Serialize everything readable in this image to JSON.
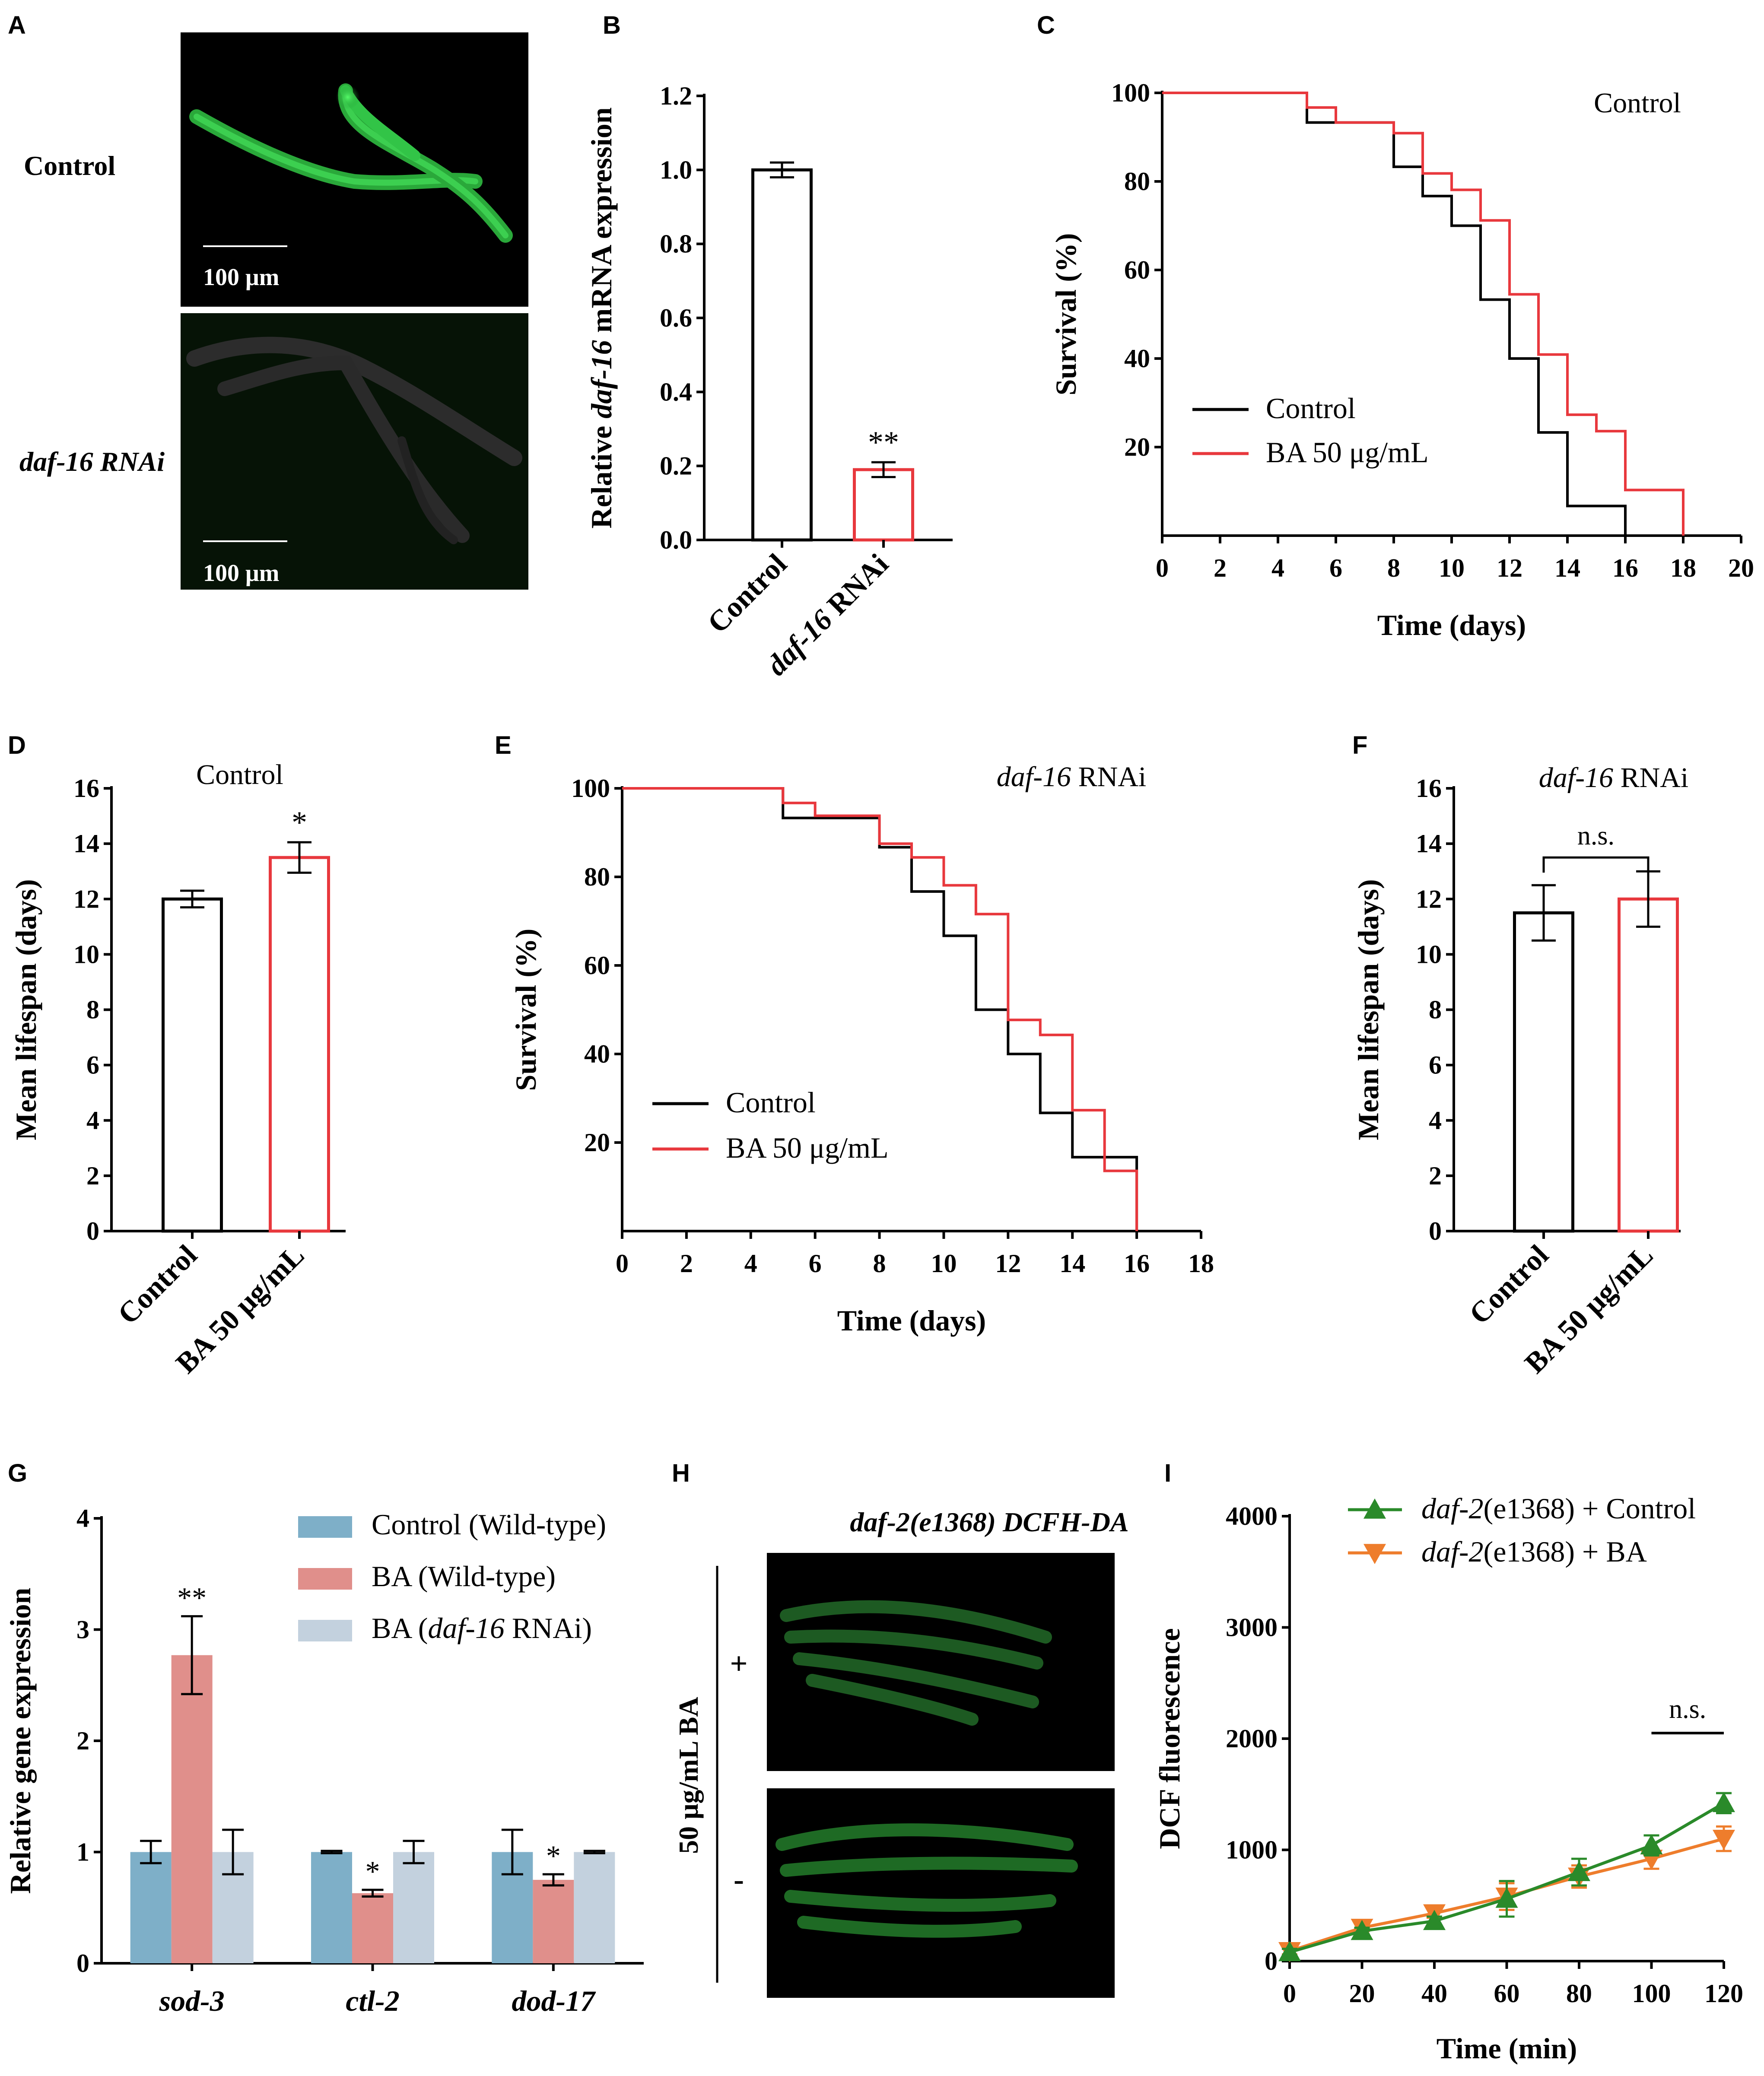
{
  "colors": {
    "black": "#000000",
    "red": "#e8383d",
    "blue": "#7eafc8",
    "salmon": "#e08f8b",
    "lightblue": "#c3d1de",
    "green": "#2a8a2a",
    "orange": "#ee7d2c",
    "microscopy_bg": "#000000",
    "microscopy_bg_dark": "#061206",
    "gfp": "#2fd44a"
  },
  "panels": {
    "A": {
      "label": "A",
      "row_labels": [
        "Control",
        "daf-16 RNAi"
      ],
      "scale_bar": "100 μm"
    },
    "H": {
      "label": "H",
      "title": "daf-2(e1368) DCFH-DA",
      "side_label": "50 μg/mL BA",
      "row_signs": [
        "+",
        "-"
      ]
    }
  },
  "chart_data": [
    {
      "id": "B",
      "type": "bar",
      "label": "B",
      "categories": [
        "Control",
        "daf-16 RNAi"
      ],
      "values": [
        1.0,
        0.19
      ],
      "errors": [
        0.02,
        0.02
      ],
      "bar_colors": [
        "#000000",
        "#e8383d"
      ],
      "significance": [
        "",
        "**"
      ],
      "ylabel": "Relative daf-16 mRNA expression",
      "ylim": [
        0,
        1.2
      ],
      "yticks": [
        "0.0",
        "0.2",
        "0.4",
        "0.6",
        "0.8",
        "1.0",
        "1.2"
      ]
    },
    {
      "id": "C",
      "type": "line",
      "step": true,
      "label": "C",
      "title": "Control",
      "xlabel": "Time (days)",
      "ylabel": "Survival (%)",
      "xlim": [
        0,
        20
      ],
      "ylim": [
        0,
        100
      ],
      "xticks": [
        "0",
        "2",
        "4",
        "6",
        "8",
        "10",
        "12",
        "14",
        "16",
        "18",
        "20"
      ],
      "yticks": [
        "20",
        "40",
        "60",
        "80",
        "100"
      ],
      "series": [
        {
          "name": "Control",
          "color": "#000000",
          "x": [
            0,
            5,
            8,
            9,
            10,
            11,
            12,
            13,
            14,
            16
          ],
          "y": [
            100,
            93.3,
            83.3,
            76.7,
            70,
            53.3,
            40,
            23.3,
            6.7,
            0
          ]
        },
        {
          "name": "BA 50 μg/mL",
          "color": "#e8383d",
          "x": [
            0,
            5,
            6,
            8,
            9,
            10,
            11,
            12,
            13,
            14,
            15,
            16,
            18
          ],
          "y": [
            100,
            96.7,
            93.3,
            90.9,
            81.8,
            78.1,
            71.2,
            54.5,
            40.9,
            27.3,
            23.6,
            10.3,
            0
          ]
        }
      ]
    },
    {
      "id": "D",
      "type": "bar",
      "label": "D",
      "title": "Control",
      "categories": [
        "Control",
        "BA 50 μg/mL"
      ],
      "values": [
        12.0,
        13.5
      ],
      "errors": [
        0.3,
        0.55
      ],
      "bar_colors": [
        "#000000",
        "#e8383d"
      ],
      "significance": [
        "",
        "*"
      ],
      "ylabel": "Mean lifespan (days)",
      "ylim": [
        0,
        16
      ],
      "yticks": [
        "0",
        "2",
        "4",
        "6",
        "8",
        "10",
        "12",
        "14",
        "16"
      ]
    },
    {
      "id": "E",
      "type": "line",
      "step": true,
      "label": "E",
      "title": "daf-16 RNAi",
      "xlabel": "Time (days)",
      "ylabel": "Survival (%)",
      "xlim": [
        0,
        18
      ],
      "ylim": [
        0,
        100
      ],
      "xticks": [
        "0",
        "2",
        "4",
        "6",
        "8",
        "10",
        "12",
        "14",
        "16",
        "18"
      ],
      "yticks": [
        "20",
        "40",
        "60",
        "80",
        "100"
      ],
      "series": [
        {
          "name": "Control",
          "color": "#000000",
          "x": [
            0,
            5,
            8,
            9,
            10,
            11,
            12,
            13,
            14,
            16
          ],
          "y": [
            100,
            93.3,
            86.7,
            76.7,
            66.7,
            50,
            40,
            26.7,
            16.7,
            0
          ]
        },
        {
          "name": "BA 50 μg/mL",
          "color": "#e8383d",
          "x": [
            0,
            5,
            6,
            8,
            9,
            10,
            11,
            12,
            13,
            14,
            15,
            16
          ],
          "y": [
            100,
            96.7,
            93.8,
            87.5,
            84.4,
            78.1,
            71.6,
            47.7,
            44.3,
            27.3,
            13.6,
            0
          ]
        }
      ]
    },
    {
      "id": "F",
      "type": "bar",
      "label": "F",
      "title": "daf-16 RNAi",
      "categories": [
        "Control",
        "BA 50 μg/mL"
      ],
      "values": [
        11.5,
        12.0
      ],
      "errors": [
        1.0,
        1.0
      ],
      "bar_colors": [
        "#000000",
        "#e8383d"
      ],
      "significance_bracket": "n.s.",
      "ylabel": "Mean lifespan (days)",
      "ylim": [
        0,
        16
      ],
      "yticks": [
        "0",
        "2",
        "4",
        "6",
        "8",
        "10",
        "12",
        "14",
        "16"
      ]
    },
    {
      "id": "G",
      "type": "bar",
      "label": "G",
      "categories": [
        "sod-3",
        "ctl-2",
        "dod-17"
      ],
      "series": [
        {
          "name": "Control (Wild-type)",
          "color": "#7eafc8",
          "values": [
            1.0,
            1.0,
            1.0
          ],
          "errors": [
            0.1,
            0.01,
            0.2
          ],
          "significance": [
            "",
            "",
            ""
          ]
        },
        {
          "name": "BA (Wild-type)",
          "color": "#e08f8b",
          "values": [
            2.77,
            0.63,
            0.75
          ],
          "errors": [
            0.35,
            0.03,
            0.05
          ],
          "significance": [
            "**",
            "*",
            "*"
          ]
        },
        {
          "name": "BA (daf-16 RNAi)",
          "color": "#c3d1de",
          "values": [
            1.0,
            1.0,
            1.0
          ],
          "errors": [
            0.2,
            0.1,
            0.01
          ],
          "significance": [
            "",
            "",
            ""
          ]
        }
      ],
      "ylabel": "Relative gene expression",
      "ylim": [
        0,
        4
      ],
      "yticks": [
        "0",
        "1",
        "2",
        "3",
        "4"
      ]
    },
    {
      "id": "I",
      "type": "line",
      "label": "I",
      "xlabel": "Time (min)",
      "ylabel": "DCF fluorescence",
      "xlim": [
        0,
        120
      ],
      "ylim": [
        0,
        4000
      ],
      "xticks": [
        "0",
        "20",
        "40",
        "60",
        "80",
        "100",
        "120"
      ],
      "yticks": [
        "0",
        "1000",
        "2000",
        "3000",
        "4000"
      ],
      "series": [
        {
          "name": "daf-2(e1368) + Control",
          "color": "#2a8a2a",
          "marker": "triangle-up",
          "x": [
            0,
            20,
            40,
            60,
            80,
            100,
            120
          ],
          "y": [
            80,
            270,
            360,
            560,
            800,
            1040,
            1420
          ],
          "errors": [
            30,
            30,
            40,
            160,
            120,
            90,
            90
          ]
        },
        {
          "name": "daf-2(e1368) + BA",
          "color": "#ee7d2c",
          "marker": "triangle-down",
          "x": [
            0,
            20,
            40,
            60,
            80,
            100,
            120
          ],
          "y": [
            90,
            300,
            430,
            580,
            760,
            920,
            1100
          ],
          "errors": [
            30,
            30,
            40,
            120,
            100,
            90,
            110
          ]
        }
      ],
      "annotation": "n.s."
    }
  ]
}
